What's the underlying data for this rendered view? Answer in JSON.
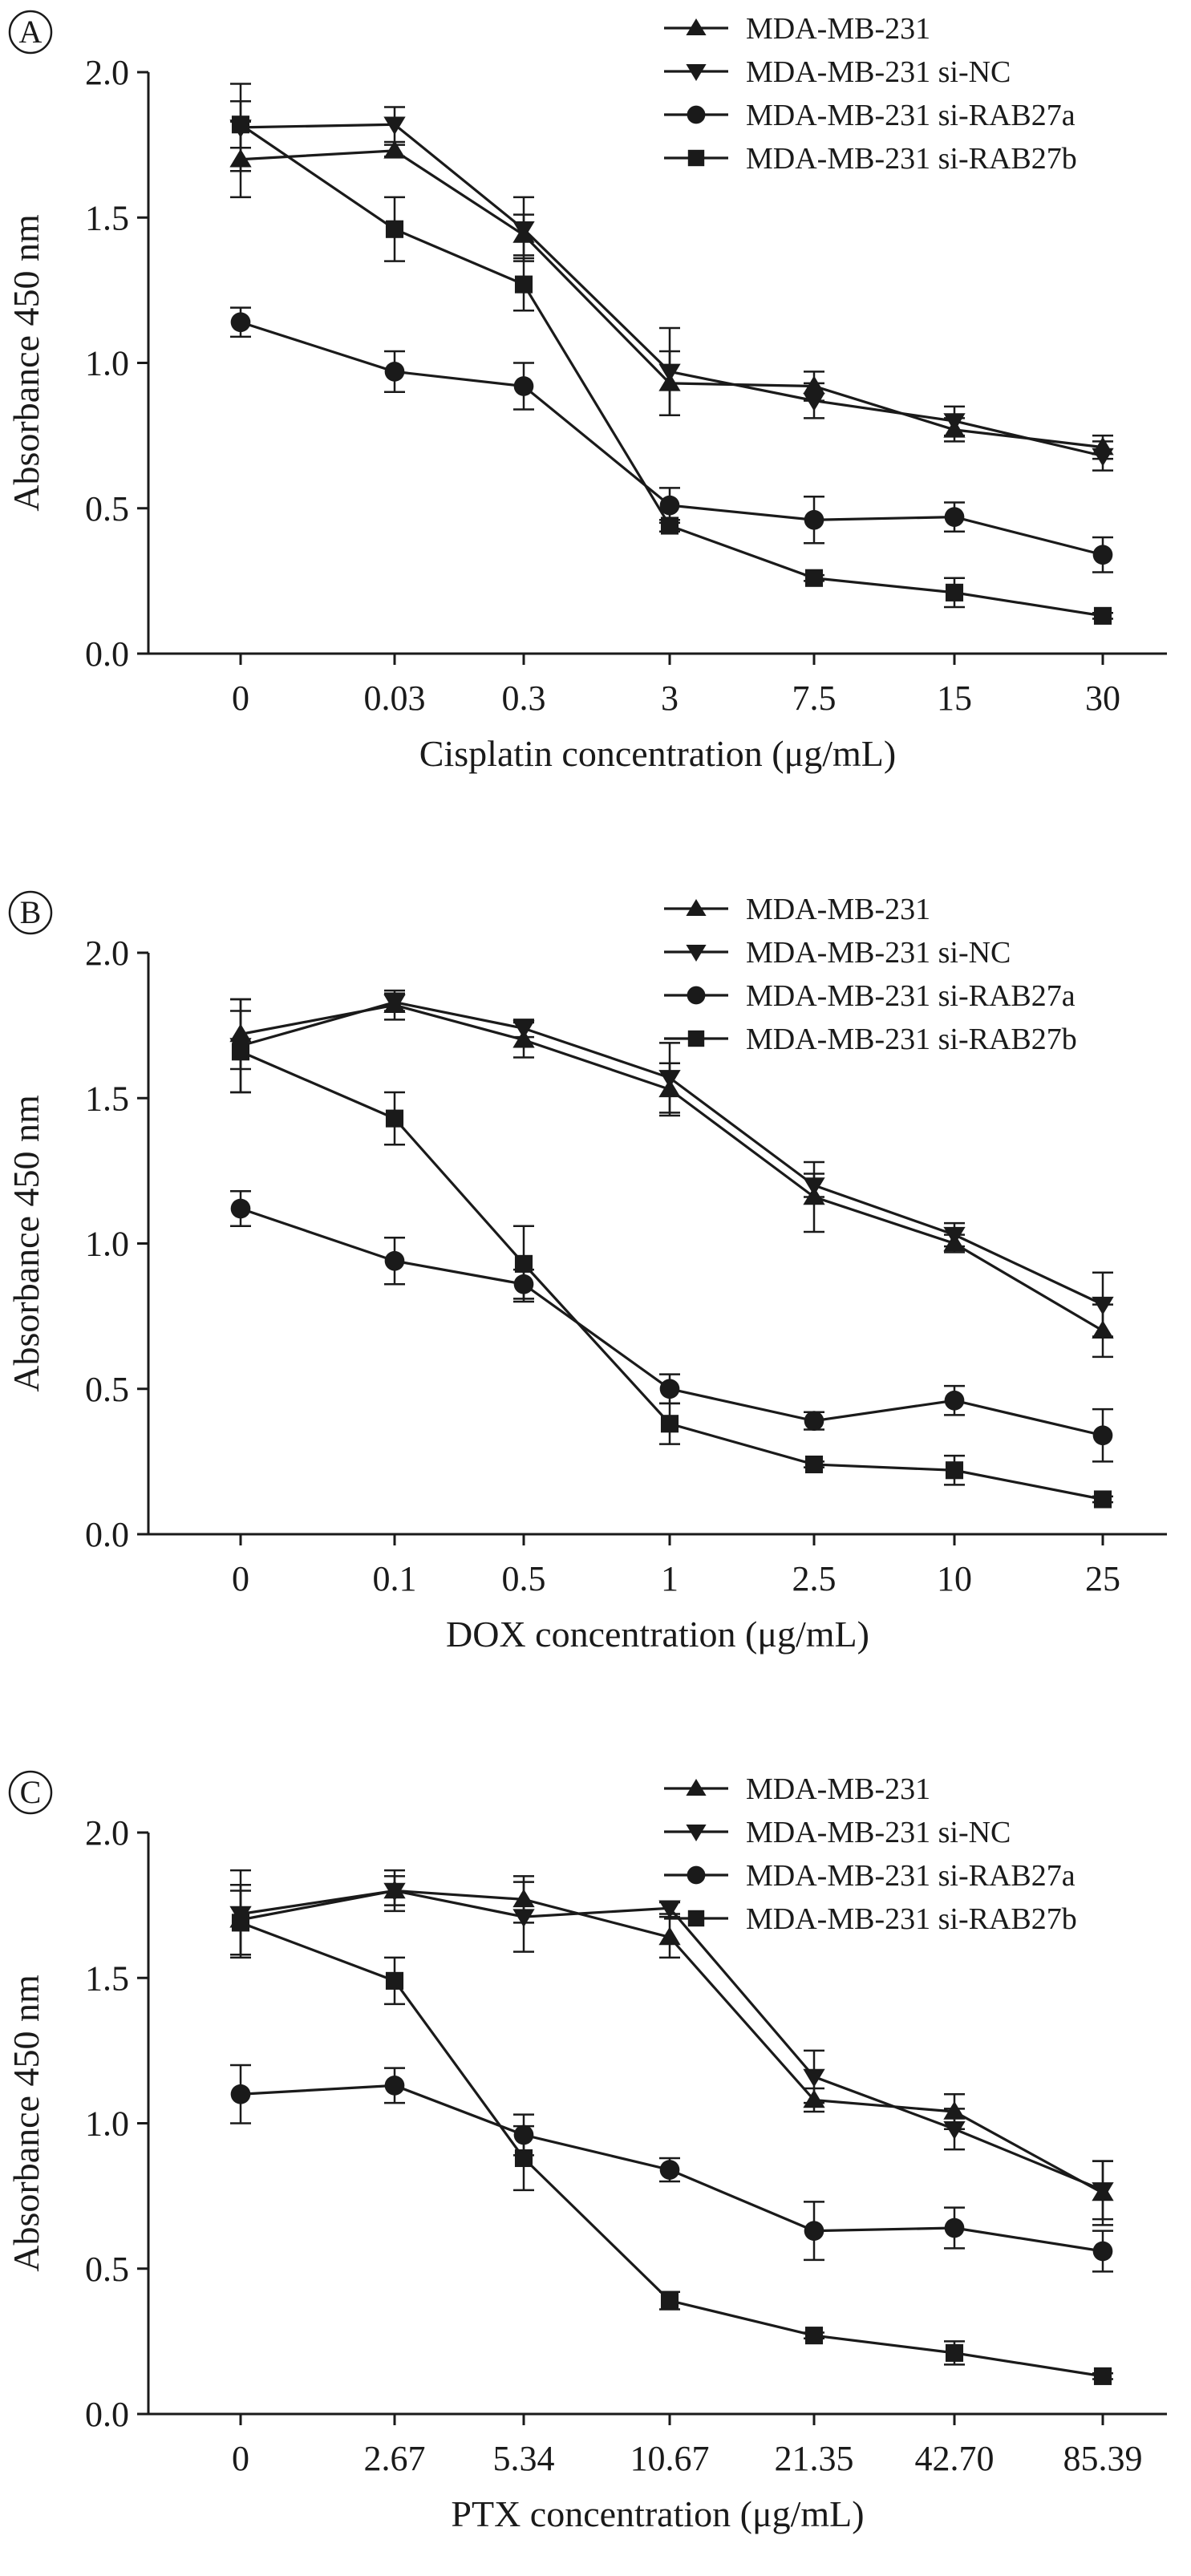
{
  "chart_data": [
    {
      "panel": "A",
      "type": "line",
      "xlabel": "Cisplatin concentration (μg/mL)",
      "ylabel": "Absorbance 450 nm",
      "categories": [
        "0",
        "0.03",
        "0.3",
        "3",
        "7.5",
        "15",
        "30"
      ],
      "ylim": [
        0,
        2.0
      ],
      "yticks": [
        "0.0",
        "0.5",
        "1.0",
        "1.5",
        "2.0"
      ],
      "legend": "top-right",
      "series": [
        {
          "name": "MDA-MB-231",
          "marker": "triangle-up",
          "values": [
            1.7,
            1.73,
            1.44,
            0.93,
            0.92,
            0.77,
            0.71
          ],
          "errors": [
            0.13,
            0.02,
            0.07,
            0.11,
            0.05,
            0.04,
            0.04
          ]
        },
        {
          "name": "MDA-MB-231 si-NC",
          "marker": "triangle-down",
          "values": [
            1.81,
            1.82,
            1.46,
            0.97,
            0.87,
            0.8,
            0.68
          ],
          "errors": [
            0.15,
            0.06,
            0.11,
            0.15,
            0.06,
            0.05,
            0.05
          ]
        },
        {
          "name": "MDA-MB-231 si-RAB27a",
          "marker": "circle",
          "values": [
            1.14,
            0.97,
            0.92,
            0.51,
            0.46,
            0.47,
            0.34
          ],
          "errors": [
            0.05,
            0.07,
            0.08,
            0.06,
            0.08,
            0.05,
            0.06
          ]
        },
        {
          "name": "MDA-MB-231 si-RAB27b",
          "marker": "square",
          "values": [
            1.82,
            1.46,
            1.27,
            0.44,
            0.26,
            0.21,
            0.13
          ],
          "errors": [
            0.08,
            0.11,
            0.09,
            0.02,
            0.01,
            0.05,
            0.01
          ]
        }
      ]
    },
    {
      "panel": "B",
      "type": "line",
      "xlabel": "DOX concentration (μg/mL)",
      "ylabel": "Absorbance 450 nm",
      "categories": [
        "0",
        "0.1",
        "0.5",
        "1",
        "2.5",
        "10",
        "25"
      ],
      "ylim": [
        0,
        2.0
      ],
      "yticks": [
        "0.0",
        "0.5",
        "1.0",
        "1.5",
        "2.0"
      ],
      "legend": "top-right",
      "series": [
        {
          "name": "MDA-MB-231",
          "marker": "triangle-up",
          "values": [
            1.72,
            1.82,
            1.7,
            1.53,
            1.16,
            1.0,
            0.7
          ],
          "errors": [
            0.12,
            0.05,
            0.06,
            0.09,
            0.12,
            0.03,
            0.09
          ]
        },
        {
          "name": "MDA-MB-231 si-NC",
          "marker": "triangle-down",
          "values": [
            1.68,
            1.83,
            1.74,
            1.57,
            1.2,
            1.03,
            0.79
          ],
          "errors": [
            0.16,
            0.03,
            0.03,
            0.12,
            0.04,
            0.04,
            0.11
          ]
        },
        {
          "name": "MDA-MB-231 si-RAB27a",
          "marker": "circle",
          "values": [
            1.12,
            0.94,
            0.86,
            0.5,
            0.39,
            0.46,
            0.34
          ],
          "errors": [
            0.06,
            0.08,
            0.05,
            0.05,
            0.03,
            0.05,
            0.09
          ]
        },
        {
          "name": "MDA-MB-231 si-RAB27b",
          "marker": "square",
          "values": [
            1.66,
            1.43,
            0.93,
            0.38,
            0.24,
            0.22,
            0.12
          ],
          "errors": [
            0.14,
            0.09,
            0.13,
            0.07,
            0.01,
            0.05,
            0.01
          ]
        }
      ]
    },
    {
      "panel": "C",
      "type": "line",
      "xlabel": "PTX concentration (μg/mL)",
      "ylabel": "Absorbance 450 nm",
      "categories": [
        "0",
        "2.67",
        "5.34",
        "10.67",
        "21.35",
        "42.70",
        "85.39"
      ],
      "ylim": [
        0,
        2.0
      ],
      "yticks": [
        "0.0",
        "0.5",
        "1.0",
        "1.5",
        "2.0"
      ],
      "legend": "top-right",
      "series": [
        {
          "name": "MDA-MB-231",
          "marker": "triangle-up",
          "values": [
            1.7,
            1.8,
            1.77,
            1.64,
            1.08,
            1.04,
            0.76
          ],
          "errors": [
            0.12,
            0.05,
            0.08,
            0.07,
            0.04,
            0.06,
            0.11
          ]
        },
        {
          "name": "MDA-MB-231 si-NC",
          "marker": "triangle-down",
          "values": [
            1.72,
            1.8,
            1.71,
            1.74,
            1.16,
            0.98,
            0.77
          ],
          "errors": [
            0.15,
            0.07,
            0.12,
            0.02,
            0.09,
            0.07,
            0.1
          ]
        },
        {
          "name": "MDA-MB-231 si-RAB27a",
          "marker": "circle",
          "values": [
            1.1,
            1.13,
            0.96,
            0.84,
            0.63,
            0.64,
            0.56
          ],
          "errors": [
            0.1,
            0.06,
            0.07,
            0.04,
            0.1,
            0.07,
            0.07
          ]
        },
        {
          "name": "MDA-MB-231 si-RAB27b",
          "marker": "square",
          "values": [
            1.69,
            1.49,
            0.88,
            0.39,
            0.27,
            0.21,
            0.13
          ],
          "errors": [
            0.11,
            0.08,
            0.11,
            0.03,
            0.01,
            0.04,
            0.01
          ]
        }
      ]
    }
  ],
  "style": {
    "ink": "#1a1a1a",
    "background": "#ffffff"
  }
}
